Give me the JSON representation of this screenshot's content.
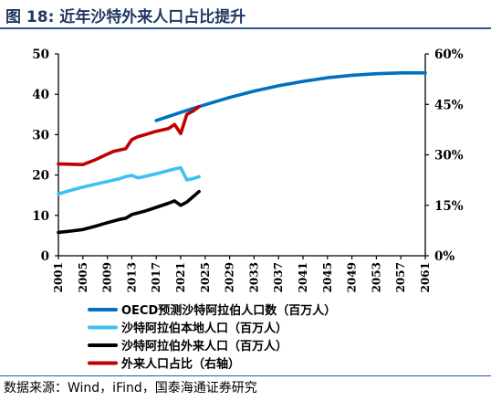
{
  "header": {
    "title": "图 18:  近年沙特外来人口占比提升"
  },
  "footer": {
    "source": "数据来源：Wind，iFind，国泰海通证券研究"
  },
  "chart_data": {
    "type": "line",
    "title": "",
    "xlabel": "",
    "ylabel": "",
    "x_range": [
      2001,
      2061
    ],
    "x_ticks": [
      "2001",
      "2005",
      "2009",
      "2013",
      "2017",
      "2021",
      "2025",
      "2029",
      "2033",
      "2037",
      "2041",
      "2045",
      "2049",
      "2053",
      "2057",
      "2061"
    ],
    "ylim": [
      0,
      50
    ],
    "y_ticks": [
      "0",
      "10",
      "20",
      "30",
      "40",
      "50"
    ],
    "y2lim": [
      0,
      60
    ],
    "y2_ticks": [
      "0%",
      "15%",
      "30%",
      "45%",
      "60%"
    ],
    "grid": false,
    "legend_position": "bottom",
    "series": [
      {
        "name": "OECD预测沙特阿拉伯人口数（百万人）",
        "color": "#0070c0",
        "axis": "left",
        "x": [
          2017,
          2019,
          2021,
          2023,
          2025,
          2029,
          2033,
          2037,
          2041,
          2045,
          2049,
          2053,
          2057,
          2060,
          2061
        ],
        "values": [
          33.5,
          34.5,
          35.5,
          36.5,
          37.4,
          39.2,
          40.8,
          42.1,
          43.2,
          44.1,
          44.7,
          45.1,
          45.3,
          45.3,
          45.3
        ]
      },
      {
        "name": "沙特阿拉伯本地人口（百万人）",
        "color": "#3cc1f0",
        "axis": "left",
        "x": [
          2001,
          2003,
          2005,
          2007,
          2009,
          2011,
          2012,
          2013,
          2014,
          2015,
          2017,
          2019,
          2020,
          2021,
          2022,
          2023,
          2024
        ],
        "values": [
          15.3,
          16.2,
          17.0,
          17.7,
          18.4,
          19.1,
          19.6,
          19.9,
          19.3,
          19.6,
          20.3,
          21.1,
          21.5,
          21.8,
          18.8,
          19.1,
          19.6
        ]
      },
      {
        "name": "沙特阿拉伯外来人口（百万人）",
        "color": "#000000",
        "axis": "left",
        "x": [
          2001,
          2003,
          2005,
          2007,
          2009,
          2011,
          2012,
          2013,
          2015,
          2017,
          2019,
          2020,
          2021,
          2022,
          2023,
          2024
        ],
        "values": [
          5.8,
          6.1,
          6.5,
          7.3,
          8.2,
          9.0,
          9.3,
          10.2,
          11.0,
          12.0,
          13.0,
          13.6,
          12.5,
          13.3,
          14.6,
          15.9
        ]
      },
      {
        "name": "外来人口占比（右轴）",
        "color": "#c00000",
        "axis": "right",
        "x": [
          2001,
          2003,
          2005,
          2007,
          2009,
          2010,
          2011,
          2012,
          2013,
          2014,
          2015,
          2017,
          2019,
          2020,
          2021,
          2022,
          2023,
          2024
        ],
        "values": [
          27.3,
          27.2,
          27.1,
          28.5,
          30.2,
          31.0,
          31.4,
          31.8,
          34.5,
          35.4,
          35.9,
          37.0,
          37.8,
          39.0,
          36.3,
          42.0,
          43.0,
          44.3
        ]
      }
    ]
  }
}
